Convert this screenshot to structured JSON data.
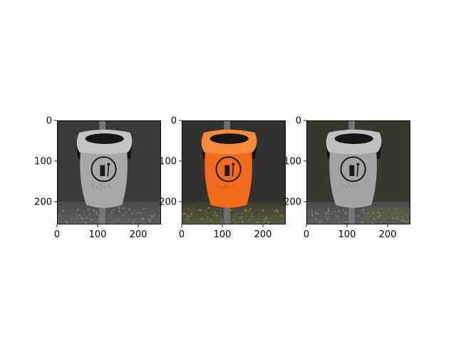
{
  "figure": {
    "background": "#ffffff",
    "layout": "1x3 image grid"
  },
  "chart_data": [
    {
      "type": "image",
      "variant": "grayscale",
      "xlim": [
        0,
        256
      ],
      "ylim": [
        256,
        0
      ],
      "xticks": [
        0,
        100,
        200
      ],
      "xtick_labels": [
        "0",
        "100",
        "200"
      ],
      "yticks": [
        0,
        100,
        200
      ],
      "ytick_labels": [
        "0",
        "100",
        "200"
      ],
      "colors": {
        "bin_body": "#a8a8a8",
        "bin_rim": "#c4c4c4",
        "background": "#3a3a3a"
      }
    },
    {
      "type": "image",
      "variant": "color",
      "xlim": [
        0,
        256
      ],
      "ylim": [
        256,
        0
      ],
      "xticks": [
        0,
        100,
        200
      ],
      "xtick_labels": [
        "0",
        "100",
        "200"
      ],
      "yticks": [
        0,
        100,
        200
      ],
      "ytick_labels": [
        "0",
        "100",
        "200"
      ],
      "colors": {
        "bin_body": "#f26a1b",
        "bin_rim": "#f58a3c",
        "background": "#333230"
      }
    },
    {
      "type": "image",
      "variant": "blended",
      "xlim": [
        0,
        256
      ],
      "ylim": [
        256,
        0
      ],
      "xticks": [
        0,
        100,
        200
      ],
      "xtick_labels": [
        "0",
        "100",
        "200"
      ],
      "yticks": [
        0,
        100,
        200
      ],
      "ytick_labels": [
        "0",
        "100",
        "200"
      ],
      "colors": {
        "bin_body": "#a3a3a3",
        "bin_rim": "#c0c0c0",
        "background": "#38382f"
      }
    }
  ]
}
